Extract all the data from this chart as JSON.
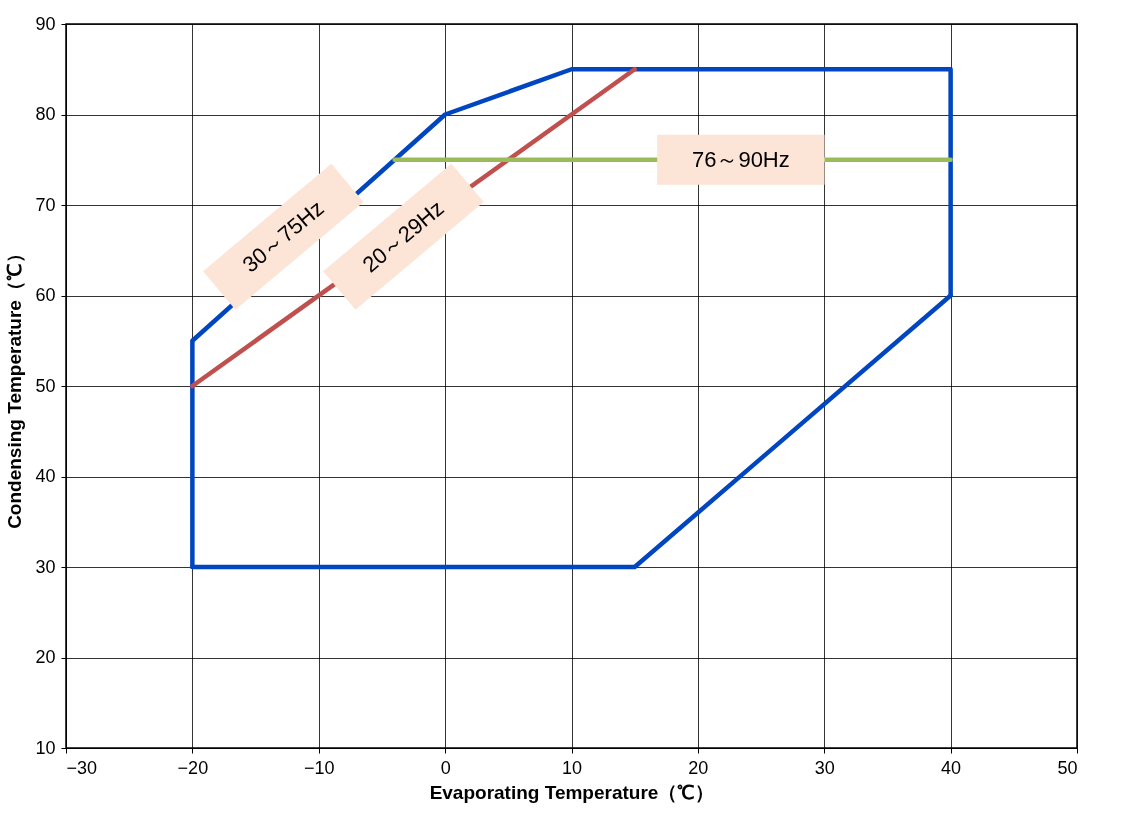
{
  "chart_data": {
    "type": "line",
    "xlabel": "Evaporating Temperature（℃）",
    "ylabel": "Condensing Temperature（℃）",
    "series": [
      {
        "color": "#0046c0",
        "x": [
          -20,
          -20,
          0,
          10,
          40,
          40
        ],
        "values": [
          30,
          55,
          80,
          85,
          85,
          60
        ]
      },
      {
        "color": "#0046c0",
        "x": [
          -20,
          15,
          40
        ],
        "values": [
          30,
          30,
          60
        ]
      },
      {
        "color": "#c0504d",
        "x": [
          -20,
          15
        ],
        "values": [
          50,
          85
        ]
      },
      {
        "color": "#9bbb59",
        "x": [
          -4,
          40
        ],
        "values": [
          75,
          75
        ]
      }
    ],
    "annotations": [
      "30～75Hz",
      "20～29Hz",
      "76～90Hz"
    ],
    "xlim": [
      -30,
      50
    ],
    "xticks": [
      -30,
      -20,
      -10,
      0,
      10,
      20,
      30,
      40,
      50
    ],
    "ylim": [
      10,
      90
    ],
    "yticks": [
      10,
      20,
      30,
      40,
      50,
      60,
      70,
      80,
      90
    ],
    "grid": true,
    "marker": "none",
    "line_style": "solid"
  }
}
